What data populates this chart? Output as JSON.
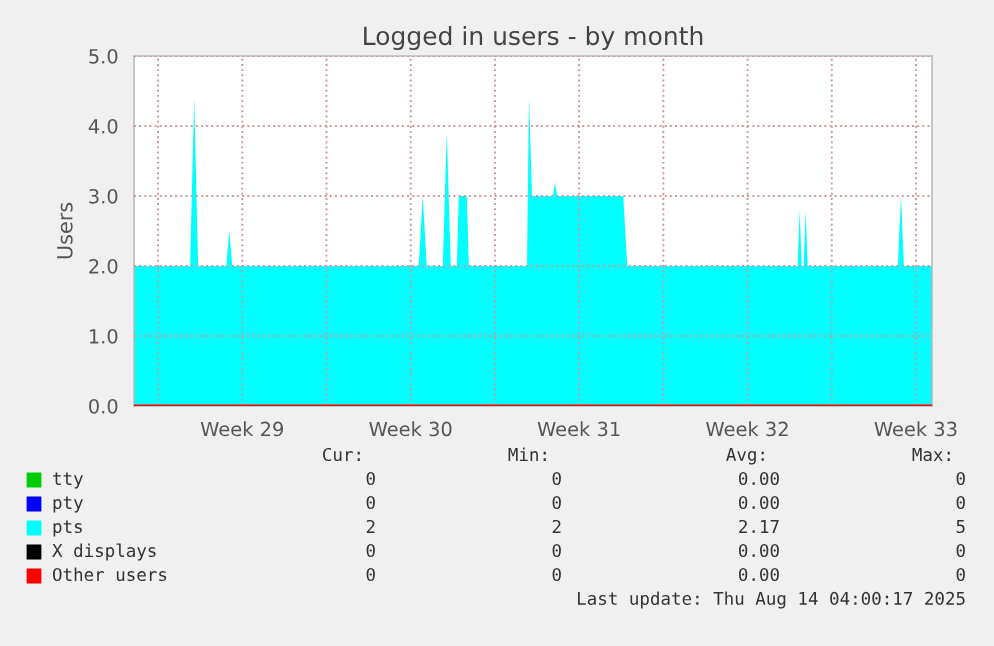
{
  "chart_data": {
    "type": "area",
    "title": "Logged in users - by month",
    "ylabel": "Users",
    "xlim": [
      "2025-07-12T00:00",
      "2025-08-14T04:00"
    ],
    "ylim": [
      0,
      5
    ],
    "xticks": [
      {
        "value": "2025-07-13",
        "label": null
      },
      {
        "value": "2025-07-16T12:00",
        "label": "Week 29"
      },
      {
        "value": "2025-07-20",
        "label": null
      },
      {
        "value": "2025-07-23T12:00",
        "label": "Week 30"
      },
      {
        "value": "2025-07-27",
        "label": null
      },
      {
        "value": "2025-07-30T12:00",
        "label": "Week 31"
      },
      {
        "value": "2025-08-03",
        "label": null
      },
      {
        "value": "2025-08-06T12:00",
        "label": "Week 32"
      },
      {
        "value": "2025-08-10",
        "label": null
      },
      {
        "value": "2025-08-13T12:00",
        "label": "Week 33"
      }
    ],
    "yticks": [
      {
        "value": 0,
        "label": "0.0"
      },
      {
        "value": 1,
        "label": "1.0"
      },
      {
        "value": 2,
        "label": "2.0"
      },
      {
        "value": 3,
        "label": "3.0"
      },
      {
        "value": 4,
        "label": "4.0"
      },
      {
        "value": 5,
        "label": "5.0"
      }
    ],
    "grid": true,
    "legend": "bottom",
    "series": [
      {
        "name": "tty",
        "color": "#00cc00",
        "type": "line"
      },
      {
        "name": "pty",
        "color": "#0000ff",
        "type": "line"
      },
      {
        "name": "pts",
        "color": "#00ffff",
        "type": "area",
        "x": [
          "2025-07-12T00:00",
          "2025-07-14T08:00",
          "2025-07-14T12:00",
          "2025-07-14T16:00",
          "2025-07-15T20:00",
          "2025-07-15T23:00",
          "2025-07-16T02:00",
          "2025-07-23T20:00",
          "2025-07-24T00:00",
          "2025-07-24T04:00",
          "2025-07-24T20:00",
          "2025-07-25T00:00",
          "2025-07-25T04:00",
          "2025-07-25T10:00",
          "2025-07-25T12:00",
          "2025-07-25T20:00",
          "2025-07-25T22:00",
          "2025-07-28T08:00",
          "2025-07-28T10:00",
          "2025-07-28T13:00",
          "2025-07-29T10:00",
          "2025-07-29T12:00",
          "2025-07-29T14:00",
          "2025-08-01T08:00",
          "2025-08-01T12:00",
          "2025-08-08T14:00",
          "2025-08-08T16:00",
          "2025-08-08T18:00",
          "2025-08-08T20:00",
          "2025-08-08T22:00",
          "2025-08-09T00:00",
          "2025-08-12T18:00",
          "2025-08-12T21:00",
          "2025-08-13T00:00",
          "2025-08-14T04:00"
        ],
        "values": [
          2,
          2,
          4.4,
          2,
          2,
          2.5,
          2,
          2,
          3.0,
          2,
          2,
          3.9,
          2,
          2,
          3.0,
          3.0,
          2,
          2,
          4.4,
          3.0,
          3.0,
          3.2,
          3.0,
          3.0,
          2,
          2,
          2.8,
          2,
          2,
          2.8,
          2,
          2,
          3.0,
          2,
          2
        ]
      },
      {
        "name": "X displays",
        "color": "#000000",
        "type": "line"
      },
      {
        "name": "Other users",
        "color": "#ff0000",
        "type": "line",
        "x": [
          "2025-07-12T00:00",
          "2025-08-14T04:00"
        ],
        "values": [
          0,
          0
        ]
      }
    ],
    "annotations": [
      "Cur:",
      "Min:",
      "Avg:",
      "Max:",
      "0",
      "0",
      "0.00",
      "0",
      "0",
      "0",
      "0.00",
      "0",
      "2",
      "2",
      "2.17",
      "5",
      "0",
      "0",
      "0.00",
      "0",
      "0",
      "0",
      "0.00",
      "0",
      "Last update: Thu Aug 14 04:00:17 2025"
    ]
  }
}
